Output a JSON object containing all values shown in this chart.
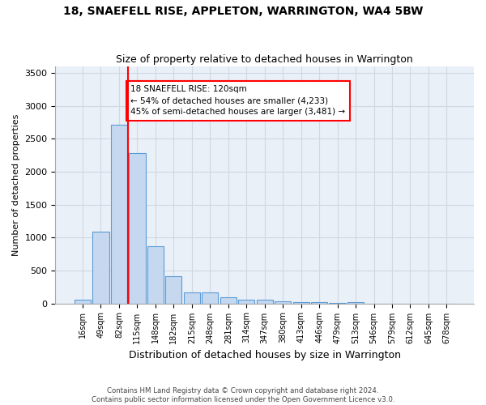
{
  "title": "18, SNAEFELL RISE, APPLETON, WARRINGTON, WA4 5BW",
  "subtitle": "Size of property relative to detached houses in Warrington",
  "xlabel": "Distribution of detached houses by size in Warrington",
  "ylabel": "Number of detached properties",
  "bar_color": "#c5d8f0",
  "bar_edge_color": "#5b9bd5",
  "grid_color": "#d0d8e4",
  "background_color": "#eaf0f8",
  "categories": [
    "16sqm",
    "49sqm",
    "82sqm",
    "115sqm",
    "148sqm",
    "182sqm",
    "215sqm",
    "248sqm",
    "281sqm",
    "314sqm",
    "347sqm",
    "380sqm",
    "413sqm",
    "446sqm",
    "479sqm",
    "513sqm",
    "546sqm",
    "579sqm",
    "612sqm",
    "645sqm",
    "678sqm"
  ],
  "values": [
    55,
    1090,
    2710,
    2280,
    870,
    410,
    170,
    165,
    90,
    60,
    55,
    30,
    20,
    20,
    5,
    20,
    0,
    0,
    0,
    0,
    0
  ],
  "ylim": [
    0,
    3600
  ],
  "yticks": [
    0,
    500,
    1000,
    1500,
    2000,
    2500,
    3000,
    3500
  ],
  "red_line_index": 2.5,
  "annotation_line1": "18 SNAEFELL RISE: 120sqm",
  "annotation_line2": "← 54% of detached houses are smaller (4,233)",
  "annotation_line3": "45% of semi-detached houses are larger (3,481) →",
  "footnote1": "Contains HM Land Registry data © Crown copyright and database right 2024.",
  "footnote2": "Contains public sector information licensed under the Open Government Licence v3.0."
}
